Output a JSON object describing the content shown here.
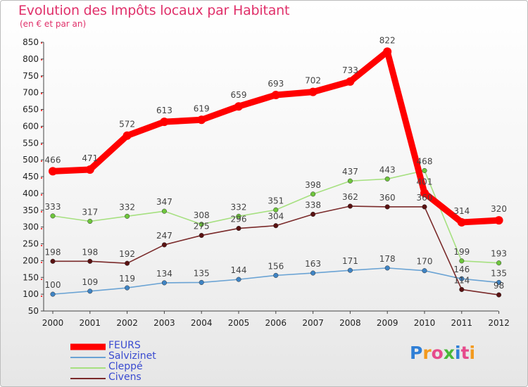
{
  "title": "Evolution des Impôts locaux par Habitant",
  "subtitle": "(en € et par an)",
  "logo_text": "Proxiti",
  "chart_data": {
    "type": "line",
    "title": "Evolution des Impôts locaux par Habitant",
    "subtitle": "(en € et par an)",
    "xlabel": "",
    "ylabel": "",
    "ylim": [
      50,
      850
    ],
    "yticks": [
      50,
      100,
      150,
      200,
      250,
      300,
      350,
      400,
      450,
      500,
      550,
      600,
      650,
      700,
      750,
      800,
      850
    ],
    "grid": false,
    "legend_position": "bottom-left",
    "x": [
      "2000",
      "2001",
      "2002",
      "2003",
      "2004",
      "2005",
      "2006",
      "2007",
      "2008",
      "2009",
      "2010",
      "2011",
      "2012"
    ],
    "series": [
      {
        "name": "FEURS",
        "color": "#ff0000",
        "marker": "#ff0000",
        "values": [
          466,
          471,
          572,
          613,
          619,
          659,
          693,
          702,
          733,
          822,
          401,
          314,
          320
        ]
      },
      {
        "name": "Salvizinet",
        "color": "#6aa3d4",
        "marker": "#3f84c4",
        "values": [
          100,
          109,
          119,
          134,
          135,
          144,
          156,
          163,
          171,
          178,
          170,
          146,
          135
        ]
      },
      {
        "name": "Cleppé",
        "color": "#a6e080",
        "marker": "#6ec63c",
        "values": [
          333,
          317,
          332,
          347,
          308,
          332,
          351,
          398,
          437,
          443,
          468,
          199,
          193
        ]
      },
      {
        "name": "Civens",
        "color": "#7a2a2a",
        "marker": "#5a1212",
        "values": [
          198,
          198,
          192,
          247,
          275,
          296,
          304,
          338,
          362,
          360,
          360,
          114,
          98
        ]
      }
    ]
  }
}
